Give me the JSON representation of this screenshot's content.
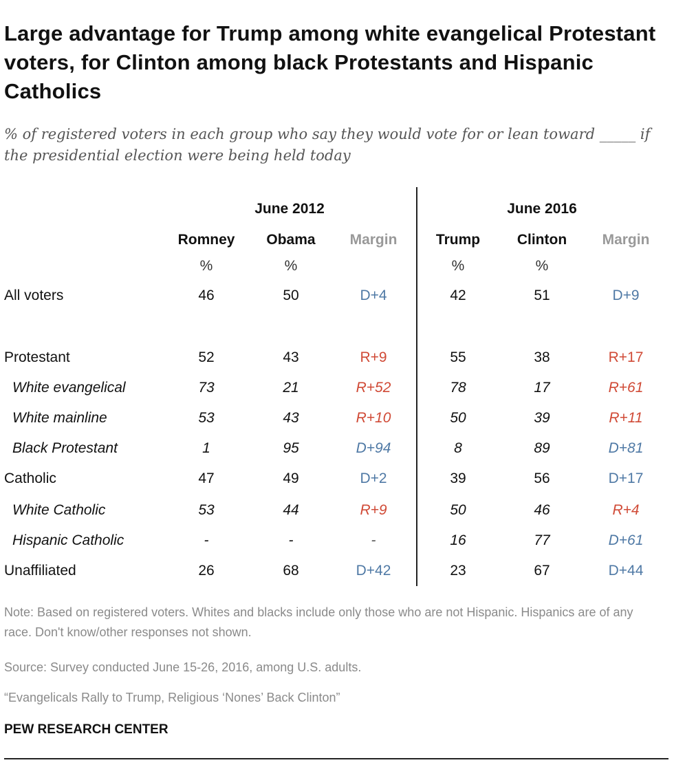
{
  "chart_data": {
    "type": "table",
    "title": "Large advantage  for Trump among white evangelical Protestant voters, for Clinton among black Protestants and Hispanic Catholics",
    "subtitle": "% of registered voters in each group who say they would vote for or lean toward _____ if the presidential election were being held today",
    "groups": [
      {
        "label": "June 2012",
        "columns": [
          "Romney",
          "Obama",
          "Margin"
        ]
      },
      {
        "label": "June 2016",
        "columns": [
          "Trump",
          "Clinton",
          "Margin"
        ]
      }
    ],
    "unit_label": "%",
    "colors": {
      "D": "#4f79a5",
      "R": "#d04a36",
      "margin_header": "#999999"
    },
    "rows": [
      {
        "label": "All voters",
        "sub": false,
        "values": [
          "46",
          "50",
          "D+4",
          "42",
          "51",
          "D+9"
        ]
      },
      {
        "label": "Protestant",
        "sub": false,
        "values": [
          "52",
          "43",
          "R+9",
          "55",
          "38",
          "R+17"
        ]
      },
      {
        "label": "White evangelical",
        "sub": true,
        "values": [
          "73",
          "21",
          "R+52",
          "78",
          "17",
          "R+61"
        ]
      },
      {
        "label": "White mainline",
        "sub": true,
        "values": [
          "53",
          "43",
          "R+10",
          "50",
          "39",
          "R+11"
        ]
      },
      {
        "label": "Black Protestant",
        "sub": true,
        "values": [
          "1",
          "95",
          "D+94",
          "8",
          "89",
          "D+81"
        ]
      },
      {
        "label": "Catholic",
        "sub": false,
        "values": [
          "47",
          "49",
          "D+2",
          "39",
          "56",
          "D+17"
        ]
      },
      {
        "label": "White Catholic",
        "sub": true,
        "values": [
          "53",
          "44",
          "R+9",
          "50",
          "46",
          "R+4"
        ]
      },
      {
        "label": "Hispanic Catholic",
        "sub": true,
        "values": [
          "-",
          "-",
          "-",
          "16",
          "77",
          "D+61"
        ]
      },
      {
        "label": "Unaffiliated",
        "sub": false,
        "values": [
          "26",
          "68",
          "D+42",
          "23",
          "67",
          "D+44"
        ]
      }
    ],
    "note": "Note: Based on registered voters. Whites and blacks include only those who are not Hispanic. Hispanics are of any race. Don't know/other responses not shown.",
    "source": "Source: Survey conducted June 15-26, 2016, among U.S. adults.",
    "report": "“Evangelicals Rally to Trump, Religious ‘Nones’ Back Clinton”",
    "brand": "PEW RESEARCH CENTER"
  }
}
